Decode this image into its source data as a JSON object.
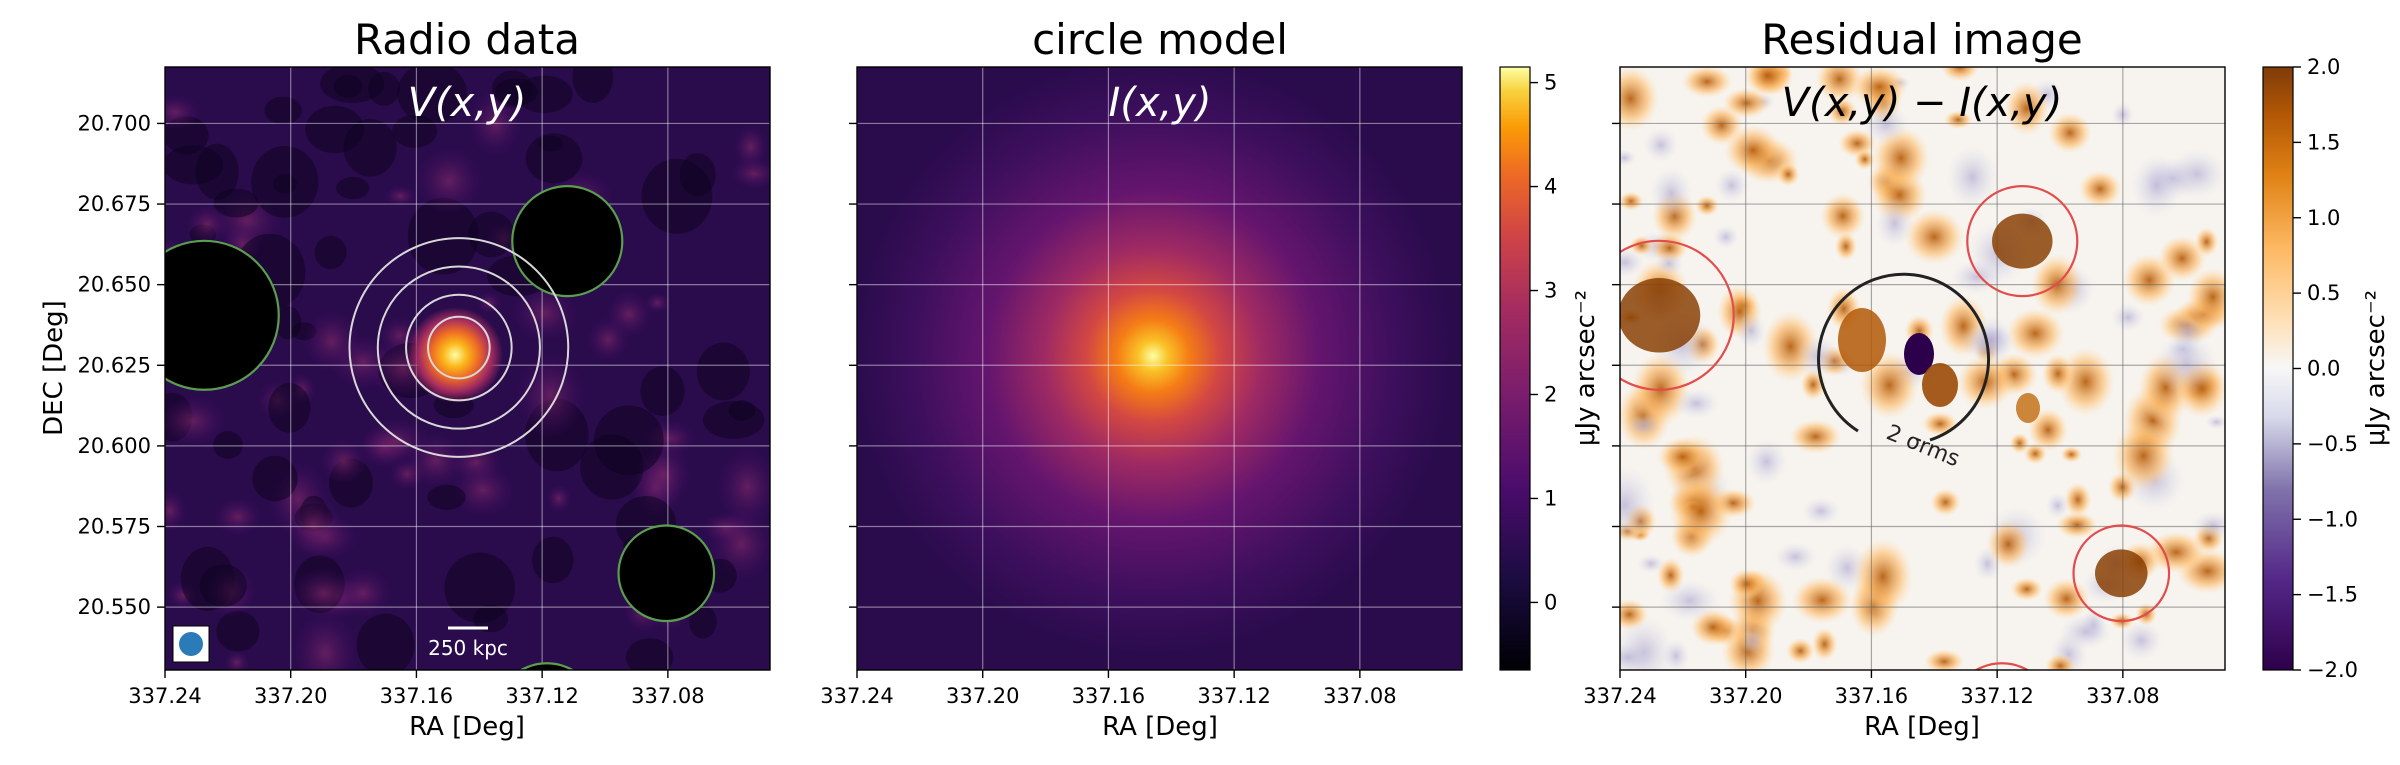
{
  "chart_data": [
    {
      "type": "heatmap",
      "title": "Radio data",
      "formula": "V(x,y)",
      "xlabel": "RA [Deg]",
      "ylabel": "DEC [Deg]",
      "xticks": [
        "337.24",
        "337.20",
        "337.16",
        "337.12",
        "337.08"
      ],
      "yticks": [
        "20.700",
        "20.675",
        "20.650",
        "20.625",
        "20.600",
        "20.575",
        "20.550"
      ],
      "xlim": [
        337.24,
        337.0475
      ],
      "ylim": [
        20.5305,
        20.7175
      ],
      "grid": true,
      "scalebar_label": "250 kpc",
      "colormap": "inferno",
      "masked_sources": [
        {
          "ra": 337.2275,
          "dec": 20.6405,
          "r": 0.0237
        },
        {
          "ra": 337.112,
          "dec": 20.6635,
          "r": 0.0175
        },
        {
          "ra": 337.0805,
          "dec": 20.5605,
          "r": 0.0152
        },
        {
          "ra": 337.1185,
          "dec": 20.5165,
          "r": 0.0165
        }
      ],
      "contour_rings": {
        "center_ra": 337.1465,
        "center_dec": 20.6305,
        "radii": [
          0.0098,
          0.0168,
          0.0258,
          0.0348
        ]
      }
    },
    {
      "type": "heatmap",
      "title": "circle model",
      "formula": "I(x,y)",
      "xlabel": "RA [Deg]",
      "xticks": [
        "337.24",
        "337.20",
        "337.16",
        "337.12",
        "337.08"
      ],
      "xlim": [
        337.24,
        337.0475
      ],
      "ylim": [
        20.5305,
        20.7175
      ],
      "grid": true,
      "colormap": "inferno",
      "model_center": {
        "ra": 337.145,
        "dec": 20.6305
      },
      "colorbar": {
        "label": "μJy arcsec⁻²",
        "ticks": [
          "0",
          "1",
          "2",
          "3",
          "4",
          "5"
        ],
        "range": [
          -0.65,
          5.15
        ]
      }
    },
    {
      "type": "heatmap",
      "title": "Residual image",
      "formula": "V(x,y) − I(x,y)",
      "xlabel": "RA [Deg]",
      "xticks": [
        "337.24",
        "337.20",
        "337.16",
        "337.12",
        "337.08"
      ],
      "xlim": [
        337.24,
        337.0475
      ],
      "ylim": [
        20.5305,
        20.7175
      ],
      "grid": true,
      "colormap": "PuOr_r",
      "contour_label": "2 σrms",
      "colorbar": {
        "label": "μJy arcsec⁻²",
        "ticks": [
          "2.0",
          "1.5",
          "1.0",
          "0.5",
          "0.0",
          "−0.5",
          "−1.0",
          "−1.5",
          "−2.0"
        ],
        "range": [
          -2.0,
          2.0
        ]
      }
    }
  ],
  "colors": {
    "mask_edge_left": "#5a9e4e",
    "mask_edge_right": "#e34c4c",
    "rings": "#d8d8d8",
    "beam": "#2b7bb9",
    "residual_contour": "#222222"
  }
}
